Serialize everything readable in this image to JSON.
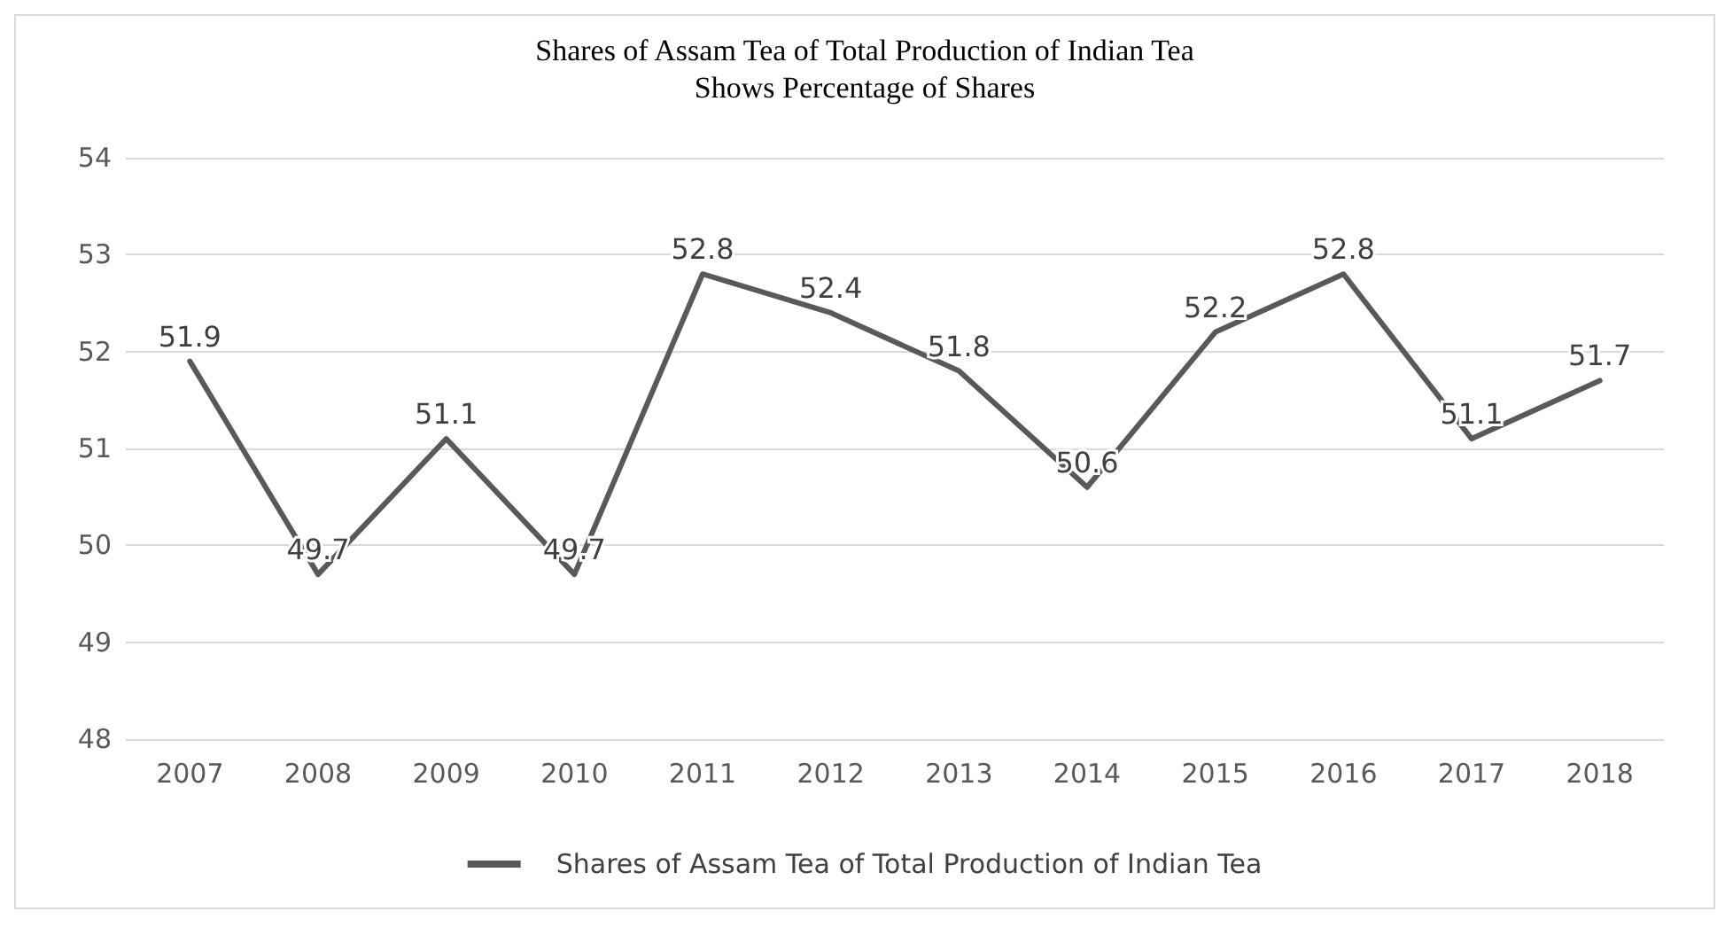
{
  "chart_data": {
    "type": "line",
    "title": "Shares of Assam Tea of Total Production of Indian Tea",
    "subtitle": "Shows Percentage of Shares",
    "categories": [
      "2007",
      "2008",
      "2009",
      "2010",
      "2011",
      "2012",
      "2013",
      "2014",
      "2015",
      "2016",
      "2017",
      "2018"
    ],
    "series": [
      {
        "name": "Shares of Assam Tea of Total Production of Indian Tea",
        "color": "#595959",
        "values": [
          51.9,
          49.7,
          51.1,
          49.7,
          52.8,
          52.4,
          51.8,
          50.6,
          52.2,
          52.8,
          51.1,
          51.7
        ]
      }
    ],
    "ylim": [
      48,
      54
    ],
    "yticks": [
      48,
      49,
      50,
      51,
      52,
      53,
      54
    ],
    "grid": "y",
    "legend": "bottom",
    "data_labels": true,
    "marker": "none",
    "line_style": "solid"
  }
}
